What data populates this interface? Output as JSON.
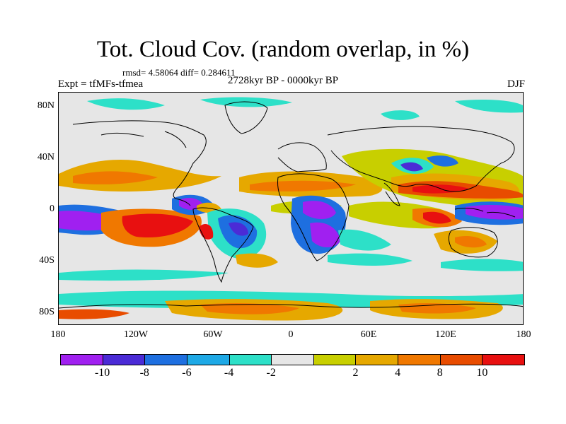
{
  "title": "Tot. Cloud Cov. (random overlap, in %)",
  "stats": "rmsd= 4.58064 diff= 0.284611",
  "expt": "Expt = tfMFs-tfmea",
  "period": "2728kyr BP - 0000kyr BP",
  "season": "DJF",
  "lat_labels": [
    "80N",
    "40N",
    "0",
    "40S",
    "80S"
  ],
  "lon_labels": [
    "180",
    "120W",
    "60W",
    "0",
    "60E",
    "120E",
    "180"
  ],
  "colorbar": {
    "colors": [
      "#a020f0",
      "#4b2bd6",
      "#1e6fe0",
      "#1ea9e6",
      "#2de0c8",
      "#e6e6e6",
      "#c8cf00",
      "#e6a800",
      "#f07800",
      "#e84c00",
      "#e81010"
    ],
    "labels": [
      "-10",
      "-8",
      "-6",
      "-4",
      "-2",
      "2",
      "4",
      "8",
      "10"
    ]
  }
}
